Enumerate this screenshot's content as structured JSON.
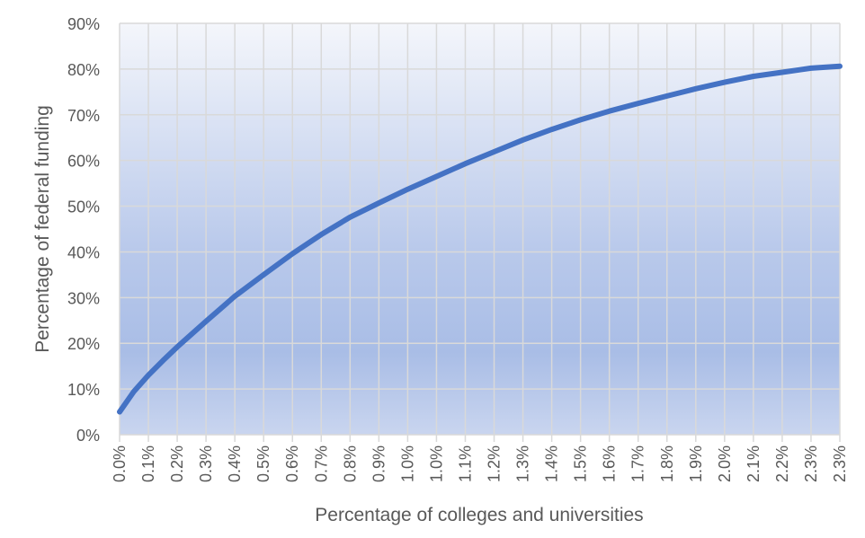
{
  "chart_data": {
    "type": "line",
    "title": "",
    "xlabel": "Percentage of colleges and universities",
    "ylabel": "Percentage of federal funding",
    "x_unit": "percent",
    "y_unit": "percent",
    "xlim": [
      0,
      2.5
    ],
    "ylim": [
      0,
      90
    ],
    "grid": true,
    "legend": "none",
    "x_tick_labels": [
      "0.0%",
      "0.1%",
      "0.2%",
      "0.3%",
      "0.4%",
      "0.5%",
      "0.6%",
      "0.7%",
      "0.8%",
      "0.9%",
      "1.0%",
      "1.0%",
      "1.1%",
      "1.2%",
      "1.3%",
      "1.4%",
      "1.5%",
      "1.6%",
      "1.7%",
      "1.8%",
      "1.9%",
      "2.0%",
      "2.1%",
      "2.2%",
      "2.3%",
      "2.3%"
    ],
    "y_tick_labels": [
      "0%",
      "10%",
      "20%",
      "30%",
      "40%",
      "50%",
      "60%",
      "70%",
      "80%",
      "90%"
    ],
    "series": [
      {
        "color": "#4472C4",
        "x": [
          0.0,
          0.05,
          0.1,
          0.15,
          0.2,
          0.25,
          0.3,
          0.4,
          0.5,
          0.6,
          0.7,
          0.8,
          0.9,
          1.0,
          1.1,
          1.2,
          1.3,
          1.4,
          1.5,
          1.6,
          1.7,
          1.8,
          1.9,
          2.0,
          2.1,
          2.2,
          2.3,
          2.4,
          2.5
        ],
        "y": [
          5,
          9.5,
          13,
          16.2,
          19.2,
          22,
          24.8,
          30.3,
          35,
          39.6,
          43.8,
          47.6,
          50.7,
          53.7,
          56.5,
          59.3,
          61.9,
          64.5,
          66.8,
          68.9,
          70.8,
          72.5,
          74.1,
          75.7,
          77.1,
          78.4,
          79.3,
          80.2,
          80.6
        ]
      }
    ]
  },
  "colors": {
    "line": "#4472C4",
    "grid": "#d9d9d9",
    "plot_bg_top": "#f4f6fb",
    "plot_bg_bottom": "#a9bde6",
    "text": "#595959"
  }
}
